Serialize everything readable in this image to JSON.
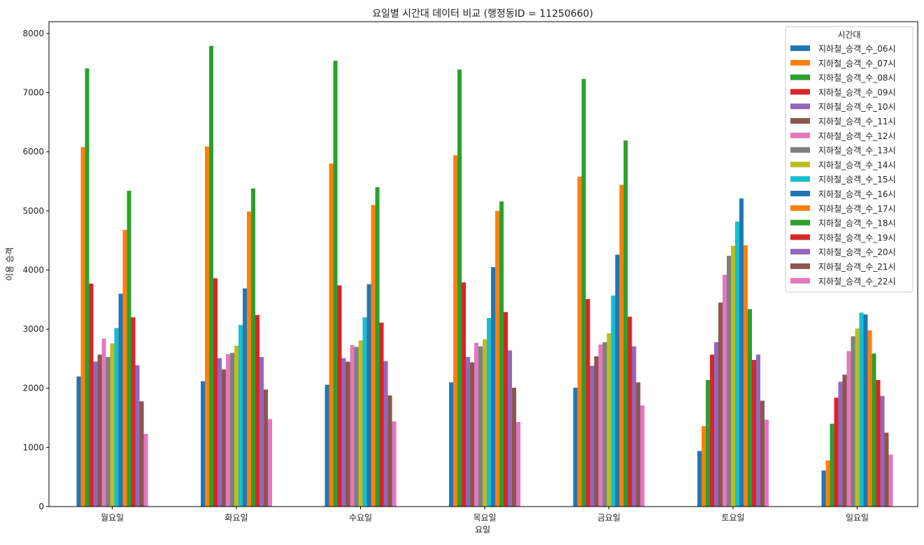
{
  "chart_data": {
    "type": "bar",
    "title": "요일별 시간대 데이터 비교 (행정동ID = 11250660)",
    "xlabel": "요일",
    "ylabel": "이용 승객",
    "ylim": [
      0,
      8200
    ],
    "yticks": [
      0,
      1000,
      2000,
      3000,
      4000,
      5000,
      6000,
      7000,
      8000
    ],
    "grid": false,
    "legend_title": "시간대",
    "legend_position": "top-right",
    "categories": [
      "월요일",
      "화요일",
      "수요일",
      "목요일",
      "금요일",
      "토요일",
      "일요일"
    ],
    "series": [
      {
        "name": "지하철_승객_수_06시",
        "color": "#1f77b4",
        "values": [
          2200,
          2120,
          2060,
          2100,
          2010,
          940,
          610
        ]
      },
      {
        "name": "지하철_승객_수_07시",
        "color": "#ff7f0e",
        "values": [
          6080,
          6090,
          5800,
          5940,
          5580,
          1360,
          780
        ]
      },
      {
        "name": "지하철_승객_수_08시",
        "color": "#2ca02c",
        "values": [
          7410,
          7790,
          7540,
          7390,
          7230,
          2140,
          1400
        ]
      },
      {
        "name": "지하철_승객_수_09시",
        "color": "#d62728",
        "values": [
          3770,
          3860,
          3740,
          3790,
          3510,
          2570,
          1840
        ]
      },
      {
        "name": "지하철_승객_수_10시",
        "color": "#9467bd",
        "values": [
          2450,
          2510,
          2510,
          2530,
          2380,
          2780,
          2110
        ]
      },
      {
        "name": "지하철_승객_수_11시",
        "color": "#8c564b",
        "values": [
          2570,
          2320,
          2450,
          2440,
          2540,
          3450,
          2230
        ]
      },
      {
        "name": "지하철_승객_수_12시",
        "color": "#e377c2",
        "values": [
          2840,
          2580,
          2730,
          2770,
          2740,
          3920,
          2630
        ]
      },
      {
        "name": "지하철_승객_수_13시",
        "color": "#7f7f7f",
        "values": [
          2530,
          2600,
          2700,
          2710,
          2780,
          4240,
          2880
        ]
      },
      {
        "name": "지하철_승객_수_14시",
        "color": "#bcbd22",
        "values": [
          2760,
          2720,
          2810,
          2830,
          2930,
          4410,
          3010
        ]
      },
      {
        "name": "지하철_승객_수_15시",
        "color": "#17becf",
        "values": [
          3020,
          3070,
          3200,
          3190,
          3570,
          4820,
          3280
        ]
      },
      {
        "name": "지하철_승객_수_16시",
        "color": "#1f77b4",
        "values": [
          3600,
          3690,
          3760,
          4050,
          4260,
          5210,
          3250
        ]
      },
      {
        "name": "지하철_승객_수_17시",
        "color": "#ff7f0e",
        "values": [
          4680,
          4990,
          5100,
          5000,
          5440,
          4420,
          2980
        ]
      },
      {
        "name": "지하철_승객_수_18시",
        "color": "#2ca02c",
        "values": [
          5340,
          5380,
          5400,
          5160,
          6190,
          3340,
          2590
        ]
      },
      {
        "name": "지하철_승객_수_19시",
        "color": "#d62728",
        "values": [
          3200,
          3240,
          3110,
          3290,
          3210,
          2480,
          2140
        ]
      },
      {
        "name": "지하철_승객_수_20시",
        "color": "#9467bd",
        "values": [
          2390,
          2530,
          2460,
          2640,
          2710,
          2570,
          1870
        ]
      },
      {
        "name": "지하철_승객_수_21시",
        "color": "#8c564b",
        "values": [
          1780,
          1980,
          1880,
          2010,
          2100,
          1790,
          1250
        ]
      },
      {
        "name": "지하철_승객_수_22시",
        "color": "#e377c2",
        "values": [
          1230,
          1480,
          1440,
          1430,
          1710,
          1470,
          880
        ]
      }
    ]
  }
}
